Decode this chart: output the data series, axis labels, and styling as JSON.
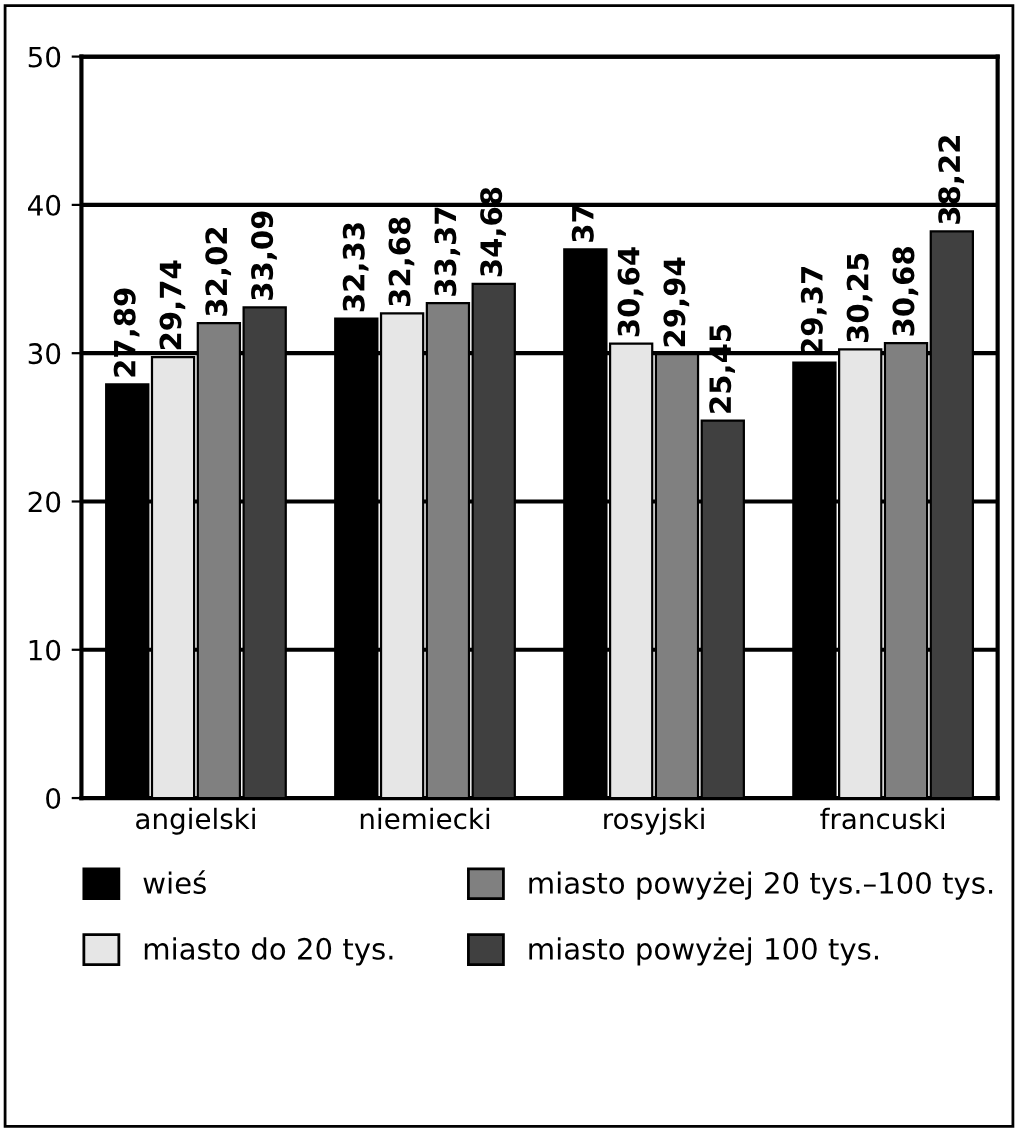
{
  "chart_data": {
    "type": "bar",
    "categories": [
      "angielski",
      "niemiecki",
      "rosyjski",
      "francuski"
    ],
    "series": [
      {
        "name": "wieś",
        "color": "#000000",
        "values": [
          27.89,
          32.33,
          37,
          29.37
        ],
        "value_labels": [
          "27,89",
          "32,33",
          "37",
          "29,37"
        ]
      },
      {
        "name": "miasto do 20 tys.",
        "color": "#e6e6e6",
        "values": [
          29.74,
          32.68,
          30.64,
          30.25
        ],
        "value_labels": [
          "29,74",
          "32,68",
          "30,64",
          "30,25"
        ]
      },
      {
        "name": "miasto powyżej 20 tys.–100 tys.",
        "color": "#808080",
        "values": [
          32.02,
          33.37,
          29.94,
          30.68
        ],
        "value_labels": [
          "32,02",
          "33,37",
          "29,94",
          "30,68"
        ]
      },
      {
        "name": "miasto powyżej 100 tys.",
        "color": "#404040",
        "values": [
          33.09,
          34.68,
          25.45,
          38.22
        ],
        "value_labels": [
          "33,09",
          "34,68",
          "25,45",
          "38,22"
        ]
      }
    ],
    "ylim": [
      0,
      50
    ],
    "yticks": [
      0,
      10,
      20,
      30,
      40,
      50
    ],
    "grid": "y",
    "legend": "bottom"
  }
}
